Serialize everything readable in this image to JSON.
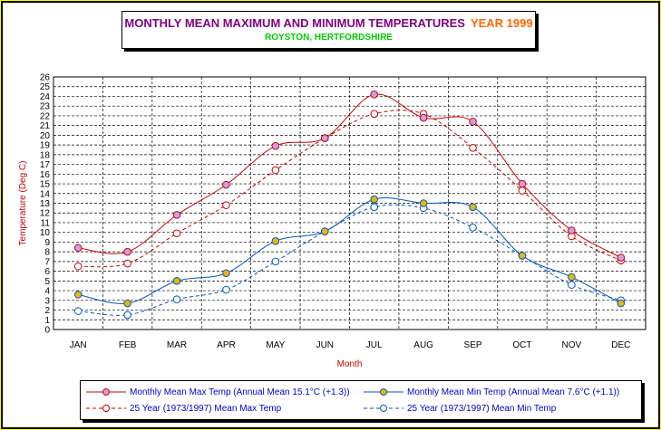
{
  "title": {
    "main": "MONTHLY MEAN MAXIMUM AND MINIMUM TEMPERATURES",
    "year": "YEAR 1999",
    "subtitle": "ROYSTON, HERTFORDSHIRE"
  },
  "colors": {
    "max": "#cc0000",
    "min": "#0055cc",
    "max_marker": "#c8a0e8",
    "min_marker": "#e8b800",
    "background": "#ffff00"
  },
  "chart_data": {
    "type": "line",
    "title": "MONTHLY MEAN MAXIMUM AND MINIMUM TEMPERATURES",
    "xlabel": "Month",
    "ylabel": "Temperature (Deg C)",
    "ylim": [
      0,
      26
    ],
    "yticks": [
      0,
      1,
      2,
      3,
      4,
      5,
      6,
      7,
      8,
      9,
      10,
      11,
      12,
      13,
      14,
      15,
      16,
      17,
      18,
      19,
      20,
      21,
      22,
      23,
      24,
      25,
      26
    ],
    "grid": true,
    "legend_position": "bottom",
    "categories": [
      "JAN",
      "FEB",
      "MAR",
      "APR",
      "MAY",
      "JUN",
      "JUL",
      "AUG",
      "SEP",
      "OCT",
      "NOV",
      "DEC"
    ],
    "series": [
      {
        "name": "Monthly Mean Max Temp (Annual Mean 15.1°C (+1.3))",
        "values": [
          8.4,
          8.0,
          11.8,
          14.9,
          18.9,
          19.7,
          24.2,
          21.8,
          21.4,
          15.0,
          10.2,
          7.4
        ],
        "color": "#cc0000",
        "dash": false,
        "marker": "filled"
      },
      {
        "name": "Monthly Mean Min Temp (Annual Mean 7.6°C (+1.1))",
        "values": [
          3.6,
          2.7,
          5.0,
          5.8,
          9.1,
          10.1,
          13.4,
          13.0,
          12.6,
          7.6,
          5.4,
          2.7
        ],
        "color": "#0055cc",
        "dash": false,
        "marker": "filled"
      },
      {
        "name": "25 Year (1973/1997)  Mean Max Temp",
        "values": [
          6.5,
          6.8,
          9.9,
          12.8,
          16.4,
          19.7,
          22.2,
          22.2,
          18.7,
          14.3,
          9.6,
          7.1
        ],
        "color": "#cc0000",
        "dash": true,
        "marker": "open"
      },
      {
        "name": "25 Year (1973/1997)  Mean Min Temp",
        "values": [
          1.9,
          1.5,
          3.1,
          4.1,
          7.0,
          10.1,
          12.6,
          12.5,
          10.5,
          7.6,
          4.6,
          3.0
        ],
        "color": "#0055cc",
        "dash": true,
        "marker": "open"
      }
    ]
  }
}
